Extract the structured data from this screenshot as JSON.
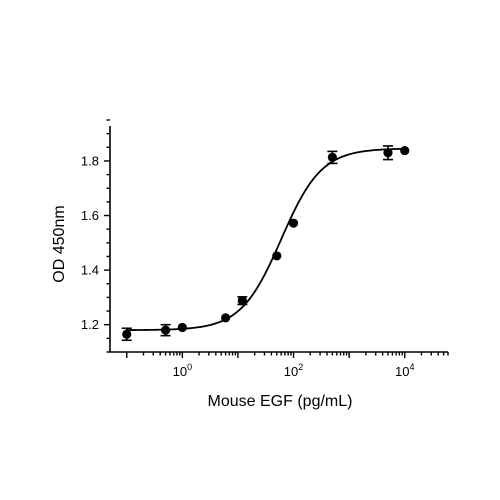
{
  "chart_data": {
    "type": "scatter",
    "title": "",
    "xlabel": "Mouse EGF (pg/mL)",
    "ylabel": "OD 450nm",
    "x_scale": "log10",
    "xlim": [
      0.05,
      60000
    ],
    "ylim": [
      1.1,
      1.95
    ],
    "x_ticks": [
      {
        "value": 1,
        "base": "10",
        "exp": "0"
      },
      {
        "value": 100,
        "base": "10",
        "exp": "2"
      },
      {
        "value": 10000,
        "base": "10",
        "exp": "4"
      }
    ],
    "y_ticks": [
      {
        "value": 1.2,
        "label": "1.2"
      },
      {
        "value": 1.4,
        "label": "1.4"
      },
      {
        "value": 1.6,
        "label": "1.6"
      },
      {
        "value": 1.8,
        "label": "1.8"
      }
    ],
    "grid": false,
    "legend": "none",
    "series": [
      {
        "points": [
          {
            "x": 0.1,
            "y": 1.165,
            "err": 0.022
          },
          {
            "x": 0.5,
            "y": 1.18,
            "err": 0.02
          },
          {
            "x": 1,
            "y": 1.19,
            "err": 0.004
          },
          {
            "x": 6,
            "y": 1.225,
            "err": 0.005
          },
          {
            "x": 12,
            "y": 1.288,
            "err": 0.014
          },
          {
            "x": 50,
            "y": 1.452,
            "err": 0.005
          },
          {
            "x": 100,
            "y": 1.572,
            "err": 0.004
          },
          {
            "x": 500,
            "y": 1.813,
            "err": 0.022
          },
          {
            "x": 5000,
            "y": 1.83,
            "err": 0.025
          },
          {
            "x": 10000,
            "y": 1.838,
            "err": 0.004
          }
        ],
        "fit": {
          "model": "4PL",
          "bottom": 1.18,
          "top": 1.846,
          "ec50": 60,
          "hill": 1.2
        }
      }
    ]
  }
}
